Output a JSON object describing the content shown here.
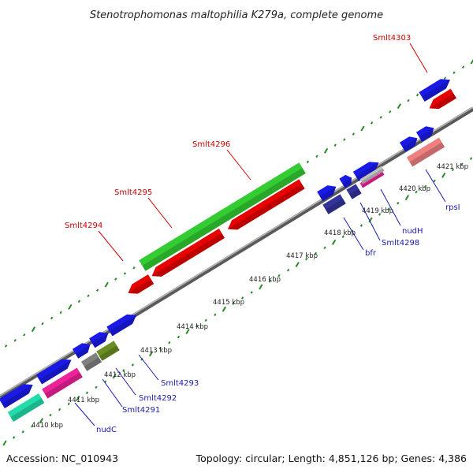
{
  "header": {
    "title": "Stenotrophomonas maltophilia K279a, complete genome"
  },
  "footer": {
    "accession": "Accession: NC_010943",
    "topology": "Topology: circular; Length: 4,851,126 bp; Genes: 4,386"
  },
  "scale": {
    "tick_labels": [
      "4410 kbp",
      "4411 kbp",
      "4412 kbp",
      "4413 kbp",
      "4414 kbp",
      "4415 kbp",
      "4416 kbp",
      "4417 kbp",
      "4418 kbp",
      "4419 kbp",
      "4420 kbp",
      "4421 kbp"
    ]
  },
  "genes": {
    "top_labels": [
      "Smlt4294",
      "Smlt4295",
      "Smlt4296",
      "Smlt4303"
    ],
    "bottom_labels": [
      "nudC",
      "Smlt4291",
      "Smlt4292",
      "Smlt4293",
      "bfr",
      "Smlt4298",
      "nudH",
      "rpsI"
    ]
  },
  "colors": {
    "forward_cds": "#1a1ae6",
    "reverse_cds": "#e60000",
    "highlight": "#33cc33",
    "pink": "#ee2299",
    "teal": "#22ddaa",
    "olive": "#6b8e23",
    "gray": "#808080",
    "navy": "#333399",
    "salmon": "#f08080",
    "backbone": "#808080",
    "ticks": "#2a8a2a"
  }
}
